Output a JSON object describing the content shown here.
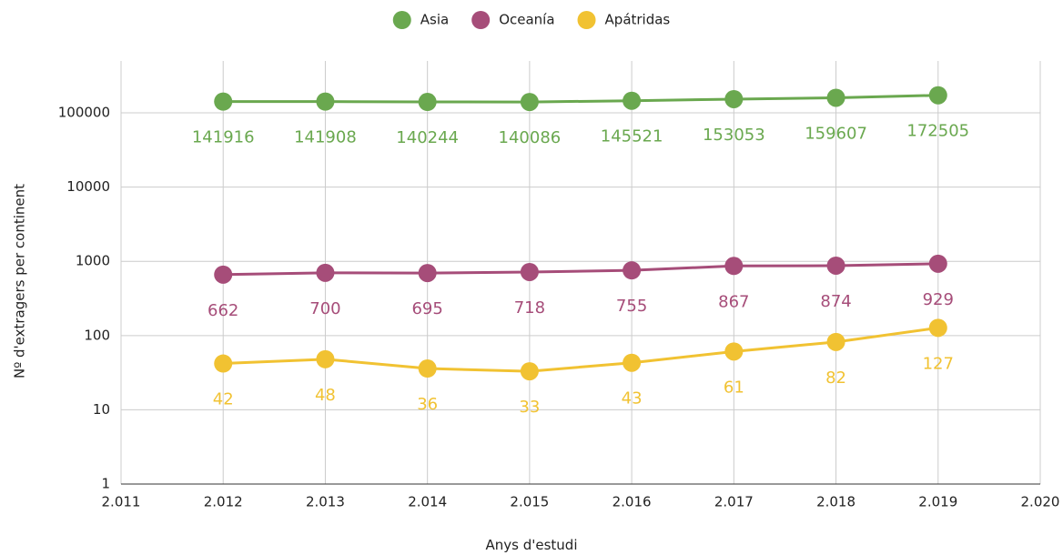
{
  "chart_data": {
    "type": "line",
    "log_y": true,
    "grid": true,
    "legend": "top",
    "x_label": "Anys d'estudi",
    "y_label": "Nº d'extragers per continent",
    "x": [
      2012,
      2013,
      2014,
      2015,
      2016,
      2017,
      2018,
      2019
    ],
    "series": [
      {
        "name": "Asia",
        "color": "#6aa84f",
        "values": [
          141916,
          141908,
          140244,
          140086,
          145521,
          153053,
          159607,
          172505
        ]
      },
      {
        "name": "Oceanía",
        "color": "#a64d79",
        "values": [
          662,
          700,
          695,
          718,
          755,
          867,
          874,
          929
        ]
      },
      {
        "name": "Apátridas",
        "color": "#f1c232",
        "values": [
          42,
          48,
          36,
          33,
          43,
          61,
          82,
          127
        ]
      }
    ],
    "xlim": [
      2011,
      2020
    ],
    "xticks": [
      {
        "value": 2011,
        "label": "2.011"
      },
      {
        "value": 2012,
        "label": "2.012"
      },
      {
        "value": 2013,
        "label": "2.013"
      },
      {
        "value": 2014,
        "label": "2.014"
      },
      {
        "value": 2015,
        "label": "2.015"
      },
      {
        "value": 2016,
        "label": "2.016"
      },
      {
        "value": 2017,
        "label": "2.017"
      },
      {
        "value": 2018,
        "label": "2.018"
      },
      {
        "value": 2019,
        "label": "2.019"
      },
      {
        "value": 2020,
        "label": "2.020"
      }
    ],
    "ylim": [
      1,
      500000
    ],
    "yticks": [
      1,
      10,
      100,
      1000,
      10000,
      100000
    ]
  }
}
